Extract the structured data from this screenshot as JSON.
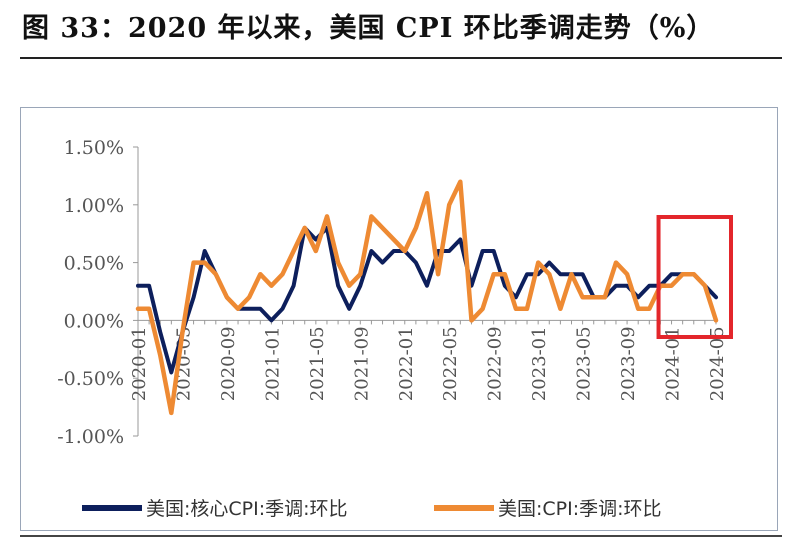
{
  "title": "图 33：2020 年以来，美国 CPI 环比季调走势（%）",
  "chart_data": {
    "type": "line",
    "title": "",
    "xlabel": "",
    "ylabel": "",
    "x_tick_labels": [
      "2020-01",
      "2020-05",
      "2020-09",
      "2021-01",
      "2021-05",
      "2021-09",
      "2022-01",
      "2022-05",
      "2022-09",
      "2023-01",
      "2023-05",
      "2023-09",
      "2024-01",
      "2024-05"
    ],
    "y_tick_labels": [
      "1.50%",
      "1.00%",
      "0.50%",
      "0.00%",
      "-0.50%",
      "-1.00%"
    ],
    "ylim": [
      -1.0,
      1.5
    ],
    "grid": false,
    "legend_position": "bottom",
    "periods": [
      "2020-01",
      "2020-02",
      "2020-03",
      "2020-04",
      "2020-05",
      "2020-06",
      "2020-07",
      "2020-08",
      "2020-09",
      "2020-10",
      "2020-11",
      "2020-12",
      "2021-01",
      "2021-02",
      "2021-03",
      "2021-04",
      "2021-05",
      "2021-06",
      "2021-07",
      "2021-08",
      "2021-09",
      "2021-10",
      "2021-11",
      "2021-12",
      "2022-01",
      "2022-02",
      "2022-03",
      "2022-04",
      "2022-05",
      "2022-06",
      "2022-07",
      "2022-08",
      "2022-09",
      "2022-10",
      "2022-11",
      "2022-12",
      "2023-01",
      "2023-02",
      "2023-03",
      "2023-04",
      "2023-05",
      "2023-06",
      "2023-07",
      "2023-08",
      "2023-09",
      "2023-10",
      "2023-11",
      "2023-12",
      "2024-01",
      "2024-02",
      "2024-03",
      "2024-04",
      "2024-05"
    ],
    "series": [
      {
        "name": "美国:核心CPI:季调:环比",
        "color": "#0d1f5c",
        "values": [
          0.3,
          0.3,
          -0.1,
          -0.45,
          -0.1,
          0.2,
          0.6,
          0.4,
          0.2,
          0.1,
          0.1,
          0.1,
          0.0,
          0.1,
          0.3,
          0.8,
          0.7,
          0.8,
          0.3,
          0.1,
          0.3,
          0.6,
          0.5,
          0.6,
          0.6,
          0.5,
          0.3,
          0.6,
          0.6,
          0.7,
          0.3,
          0.6,
          0.6,
          0.3,
          0.2,
          0.4,
          0.4,
          0.5,
          0.4,
          0.4,
          0.4,
          0.2,
          0.2,
          0.3,
          0.3,
          0.2,
          0.3,
          0.3,
          0.4,
          0.4,
          0.4,
          0.3,
          0.2
        ]
      },
      {
        "name": "美国:CPI:季调:环比",
        "color": "#ee8a33",
        "values": [
          0.1,
          0.1,
          -0.3,
          -0.8,
          -0.1,
          0.5,
          0.5,
          0.4,
          0.2,
          0.1,
          0.2,
          0.4,
          0.3,
          0.4,
          0.6,
          0.8,
          0.6,
          0.9,
          0.5,
          0.3,
          0.4,
          0.9,
          0.8,
          0.7,
          0.6,
          0.8,
          1.1,
          0.4,
          1.0,
          1.2,
          0.0,
          0.1,
          0.4,
          0.4,
          0.1,
          0.1,
          0.5,
          0.4,
          0.1,
          0.4,
          0.2,
          0.2,
          0.2,
          0.5,
          0.4,
          0.1,
          0.1,
          0.3,
          0.3,
          0.4,
          0.4,
          0.3,
          0.0
        ]
      }
    ],
    "highlight": {
      "from": "2024-01",
      "to": "2024-05",
      "color": "#e3262b"
    }
  }
}
